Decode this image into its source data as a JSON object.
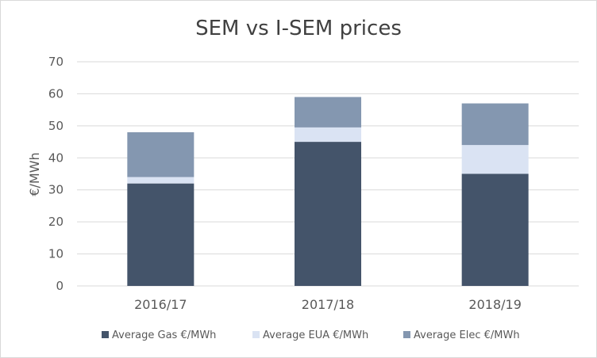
{
  "chart_data": {
    "type": "bar",
    "stacked": true,
    "title": "SEM vs I-SEM prices",
    "xlabel": "",
    "ylabel": "€/MWh",
    "ylim": [
      0,
      70
    ],
    "yticks": [
      0,
      10,
      20,
      30,
      40,
      50,
      60,
      70
    ],
    "grid": true,
    "legend_position": "bottom",
    "categories": [
      "2016/17",
      "2017/18",
      "2018/19"
    ],
    "series": [
      {
        "name": "Average Gas €/MWh",
        "values": [
          32,
          45,
          35
        ],
        "color": "#44546a"
      },
      {
        "name": "Average EUA €/MWh",
        "values": [
          2,
          4.5,
          9
        ],
        "color": "#dae3f3"
      },
      {
        "name": "Average Elec €/MWh",
        "values": [
          14,
          9.5,
          13
        ],
        "color": "#8497b0"
      }
    ]
  }
}
